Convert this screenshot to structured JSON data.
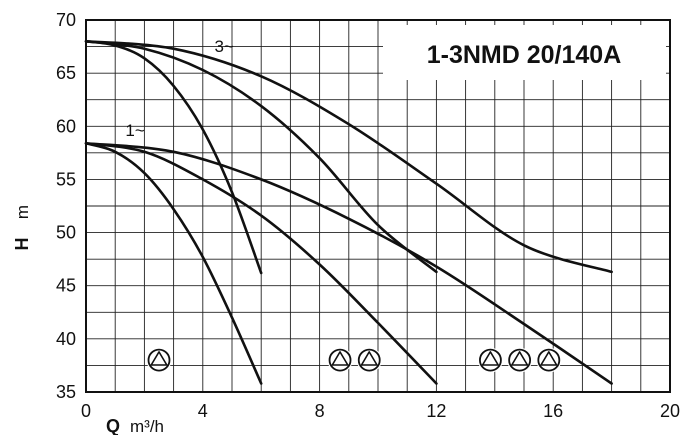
{
  "chart_data": {
    "type": "line",
    "title": "1-3NMD 20/140A",
    "xlabel": {
      "symbol": "Q",
      "unit": "m³/h"
    },
    "ylabel": {
      "symbol": "H",
      "unit": "m"
    },
    "xlim": [
      0,
      20
    ],
    "ylim": [
      35,
      70
    ],
    "x_ticks": [
      "0",
      "4",
      "8",
      "12",
      "16",
      "20"
    ],
    "y_ticks": [
      "35",
      "40",
      "45",
      "50",
      "55",
      "60",
      "65",
      "70"
    ],
    "grid": true,
    "curve_labels": [
      {
        "text": "3~",
        "x": 4.4,
        "y": 67.0
      },
      {
        "text": "1~",
        "x": 1.35,
        "y": 59.1
      }
    ],
    "series": [
      {
        "pumps": 1,
        "phase": "three",
        "points": [
          [
            0,
            68.0
          ],
          [
            1,
            67.6
          ],
          [
            2,
            66.4
          ],
          [
            3,
            63.8
          ],
          [
            4,
            59.7
          ],
          [
            5,
            53.8
          ],
          [
            6,
            46.2
          ]
        ]
      },
      {
        "pumps": 2,
        "phase": "three",
        "points": [
          [
            0,
            68.0
          ],
          [
            2,
            67.3
          ],
          [
            4,
            65.3
          ],
          [
            6,
            61.9
          ],
          [
            8,
            57.0
          ],
          [
            10,
            50.7
          ],
          [
            12,
            46.3
          ]
        ]
      },
      {
        "pumps": 3,
        "phase": "three",
        "points": [
          [
            0,
            68.0
          ],
          [
            3,
            67.3
          ],
          [
            6,
            64.7
          ],
          [
            9,
            60.2
          ],
          [
            12,
            54.6
          ],
          [
            15,
            48.8
          ],
          [
            18,
            46.3
          ]
        ]
      },
      {
        "pumps": 1,
        "phase": "single",
        "points": [
          [
            0,
            58.4
          ],
          [
            1,
            57.6
          ],
          [
            2,
            55.6
          ],
          [
            3,
            52.2
          ],
          [
            4,
            47.7
          ],
          [
            5,
            42.0
          ],
          [
            6,
            35.8
          ]
        ]
      },
      {
        "pumps": 2,
        "phase": "single",
        "points": [
          [
            0,
            58.4
          ],
          [
            2,
            57.6
          ],
          [
            4,
            55.0
          ],
          [
            6,
            51.6
          ],
          [
            8,
            47.0
          ],
          [
            10,
            41.5
          ],
          [
            12,
            35.8
          ]
        ]
      },
      {
        "pumps": 3,
        "phase": "single",
        "points": [
          [
            0,
            58.4
          ],
          [
            3,
            57.6
          ],
          [
            6,
            55.0
          ],
          [
            9,
            51.3
          ],
          [
            12,
            46.8
          ],
          [
            15,
            41.4
          ],
          [
            18,
            35.8
          ]
        ]
      }
    ],
    "pump_symbols": [
      {
        "count": 1,
        "x": [
          2.5
        ]
      },
      {
        "count": 2,
        "x": [
          8.7,
          9.7
        ]
      },
      {
        "count": 3,
        "x": [
          13.85,
          14.85,
          15.85
        ]
      }
    ]
  }
}
